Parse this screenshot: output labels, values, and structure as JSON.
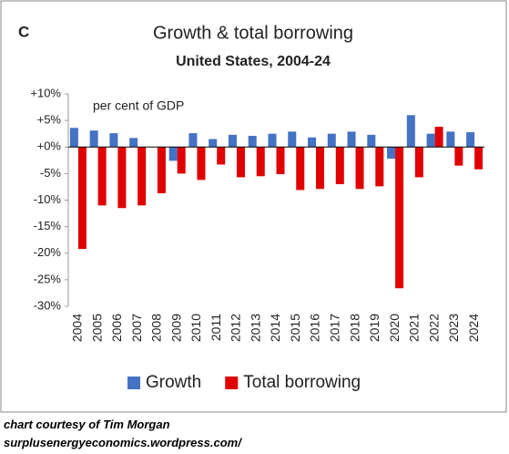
{
  "chart_data": {
    "type": "bar",
    "panel_label": "C",
    "title": "Growth & total borrowing",
    "subtitle": "United States, 2004-24",
    "annotation": "per cent of GDP",
    "categories": [
      "2004",
      "2005",
      "2006",
      "2007",
      "2008",
      "2009",
      "2010",
      "2011",
      "2012",
      "2013",
      "2014",
      "2015",
      "2016",
      "2017",
      "2018",
      "2019",
      "2020",
      "2021",
      "2022",
      "2023",
      "2024"
    ],
    "series": [
      {
        "name": "Growth",
        "color": "#4472c4",
        "values": [
          3.6,
          3.1,
          2.6,
          1.7,
          0,
          -2.6,
          2.6,
          1.5,
          2.3,
          2.1,
          2.5,
          2.9,
          1.8,
          2.5,
          2.9,
          2.3,
          -2.2,
          6.0,
          2.5,
          2.9,
          2.8
        ]
      },
      {
        "name": "Total borrowing",
        "color": "#e00000",
        "values": [
          -19.2,
          -11,
          -11.5,
          -11,
          -8.7,
          -5,
          -6.2,
          -3.3,
          -5.7,
          -5.5,
          -5.1,
          -8.1,
          -7.9,
          -7,
          -7.9,
          -7.4,
          -26.6,
          -5.7,
          3.8,
          -3.5,
          -4.2
        ]
      }
    ],
    "ylim": [
      -30,
      10
    ],
    "yticks": [
      {
        "value": 10,
        "label": "+10%"
      },
      {
        "value": 5,
        "label": "+5%"
      },
      {
        "value": 0,
        "label": "+0%"
      },
      {
        "value": -5,
        "label": "-5%"
      },
      {
        "value": -10,
        "label": "-10%"
      },
      {
        "value": -15,
        "label": "-15%"
      },
      {
        "value": -20,
        "label": "-20%"
      },
      {
        "value": -25,
        "label": "-25%"
      },
      {
        "value": -30,
        "label": "-30%"
      }
    ],
    "grid": false,
    "legend": "bottom"
  },
  "footer": [
    "chart courtesy of Tim Morgan",
    "surplusenergyeconomics.wordpress.com/"
  ]
}
